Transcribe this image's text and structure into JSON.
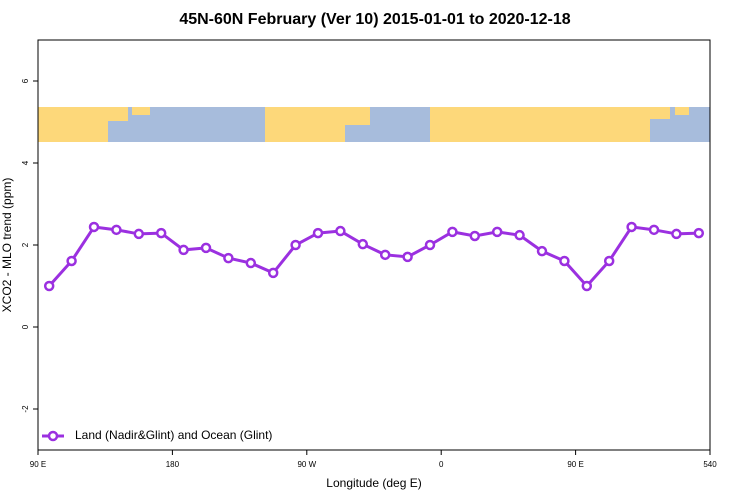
{
  "chart_data": {
    "type": "line",
    "title": "45N-60N February (Ver 10)   2015-01-01 to 2020-12-18",
    "xlabel": "Longitude (deg E)",
    "ylabel": "XCO2 - MLO trend (ppm)",
    "x": [
      97.5,
      112.5,
      127.5,
      142.5,
      157.5,
      172.5,
      187.5,
      202.5,
      217.5,
      232.5,
      247.5,
      262.5,
      277.5,
      292.5,
      307.5,
      322.5,
      337.5,
      352.5,
      367.5,
      382.5,
      397.5,
      412.5,
      427.5,
      442.5,
      457.5,
      472.5,
      487.5,
      502.5,
      517.5,
      532.5
    ],
    "series": [
      {
        "name": "Land (Nadir&Glint) and Ocean (Glint)",
        "color": "#9b30e0",
        "values": [
          1.0,
          1.61,
          2.44,
          2.37,
          2.27,
          2.29,
          1.88,
          1.93,
          1.68,
          1.56,
          1.32,
          2.0,
          2.29,
          2.34,
          2.02,
          1.76,
          1.71,
          2.0,
          2.32,
          2.22,
          2.32,
          2.24,
          1.85,
          1.61,
          1.0,
          1.61,
          2.44,
          2.37,
          2.27,
          2.29
        ]
      }
    ],
    "xlim": [
      90,
      540
    ],
    "xticks": [
      {
        "value": 90,
        "label": "90 E"
      },
      180,
      {
        "value": 270,
        "label": "90 W"
      },
      {
        "value": 360,
        "label": "0"
      },
      {
        "value": 450,
        "label": "90 E"
      },
      540
    ],
    "ylim": [
      -3,
      7
    ],
    "yticks": [
      -2,
      0,
      2,
      4,
      6
    ],
    "legend": "bottom-left"
  }
}
